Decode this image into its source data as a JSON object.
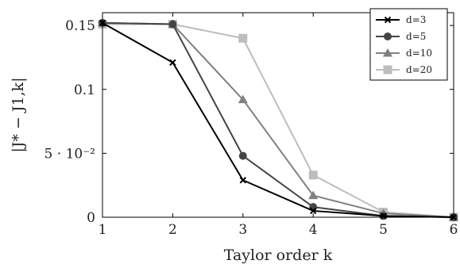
{
  "chart_data": {
    "type": "line",
    "xlabel": "Taylor order k",
    "ylabel": "|J* − J1,k|",
    "x": [
      1,
      2,
      3,
      4,
      5,
      6
    ],
    "xlim": [
      1,
      6
    ],
    "ylim": [
      0,
      0.16
    ],
    "x_ticks": [
      1,
      2,
      3,
      4,
      5,
      6
    ],
    "y_ticks": [
      {
        "value": 0,
        "label": "0"
      },
      {
        "value": 0.05,
        "label": "5 · 10⁻²"
      },
      {
        "value": 0.1,
        "label": "0.1"
      },
      {
        "value": 0.15,
        "label": "0.15"
      }
    ],
    "grid": false,
    "legend_position": "top-right",
    "series": [
      {
        "name": "d=3",
        "color": "#000000",
        "marker": "x",
        "values": [
          0.152,
          0.121,
          0.029,
          0.005,
          0.001,
          0.0
        ]
      },
      {
        "name": "d=5",
        "color": "#444444",
        "marker": "circle",
        "values": [
          0.152,
          0.151,
          0.048,
          0.008,
          0.001,
          0.0
        ]
      },
      {
        "name": "d=10",
        "color": "#808080",
        "marker": "triangle",
        "values": [
          0.152,
          0.151,
          0.092,
          0.017,
          0.003,
          0.0
        ]
      },
      {
        "name": "d=20",
        "color": "#bdbdbd",
        "marker": "square",
        "values": [
          0.151,
          0.151,
          0.14,
          0.033,
          0.004,
          0.0
        ]
      }
    ]
  }
}
